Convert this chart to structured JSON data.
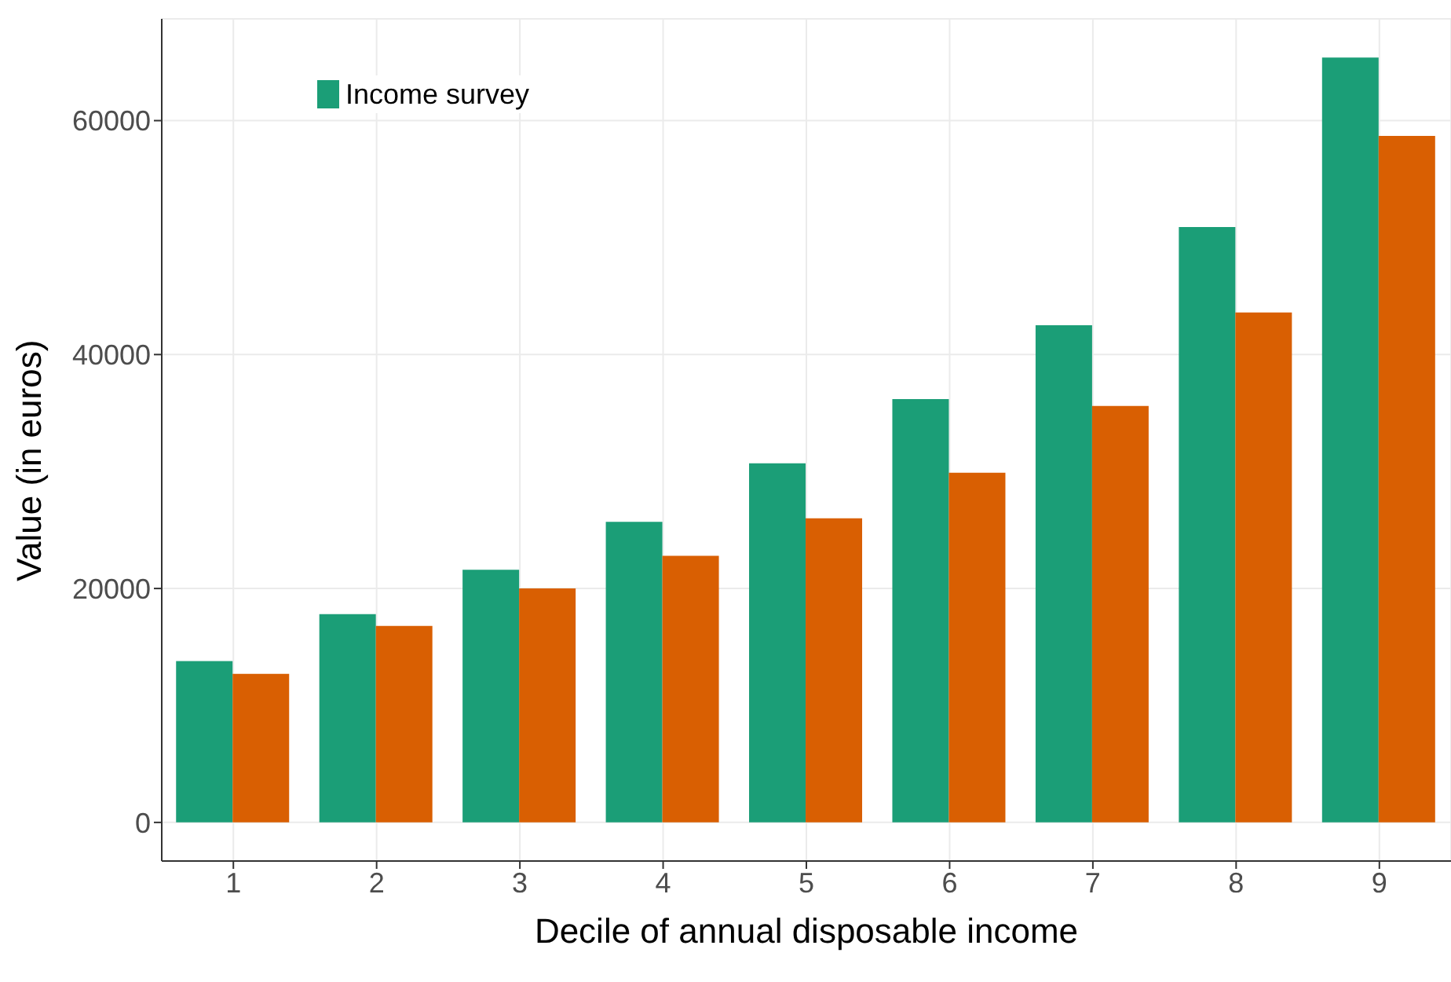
{
  "chart_data": {
    "type": "bar",
    "xlabel": "Decile of annual disposable income",
    "ylabel": "Value (in euros)",
    "categories": [
      "1",
      "2",
      "3",
      "4",
      "5",
      "6",
      "7",
      "8",
      "9"
    ],
    "series": [
      {
        "name": "Income survey",
        "color": "#1b9e77",
        "values": [
          13800,
          17800,
          21600,
          25700,
          30700,
          36200,
          42500,
          50900,
          65400
        ]
      },
      {
        "color": "#d95f02",
        "values": [
          12700,
          16800,
          20000,
          22800,
          26000,
          29900,
          35600,
          43600,
          58700
        ]
      }
    ],
    "ylim": [
      -3300,
      68700
    ],
    "yticks": [
      0,
      20000,
      40000,
      60000
    ],
    "grid": true,
    "legend": "top left"
  }
}
